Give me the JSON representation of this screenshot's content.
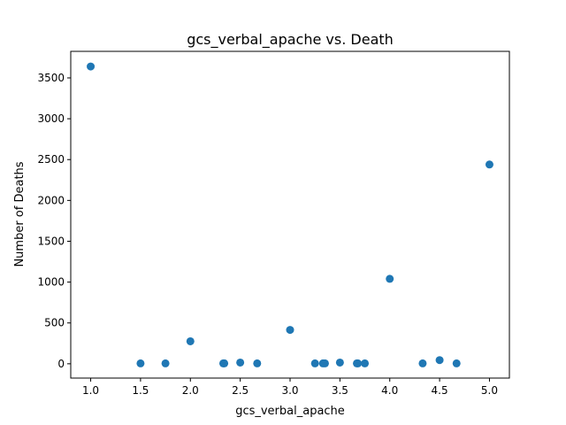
{
  "chart_data": {
    "type": "scatter",
    "title": "gcs_verbal_apache vs. Death",
    "xlabel": "gcs_verbal_apache",
    "ylabel": "Number of Deaths",
    "xlim": [
      0.8,
      5.2
    ],
    "ylim": [
      -175,
      3825
    ],
    "xticks": [
      "1.0",
      "1.5",
      "2.0",
      "2.5",
      "3.0",
      "3.5",
      "4.0",
      "4.5",
      "5.0"
    ],
    "yticks": [
      "0",
      "500",
      "1000",
      "1500",
      "2000",
      "2500",
      "3000",
      "3500"
    ],
    "grid": false,
    "marker_color": "#1f77b4",
    "x": [
      1.0,
      1.5,
      1.75,
      2.0,
      2.33,
      2.34,
      2.5,
      2.67,
      3.0,
      3.25,
      3.33,
      3.35,
      3.5,
      3.67,
      3.68,
      3.75,
      4.0,
      4.33,
      4.5,
      4.67,
      5.0
    ],
    "y": [
      3640,
      5,
      5,
      275,
      5,
      5,
      15,
      5,
      415,
      5,
      5,
      5,
      15,
      5,
      5,
      5,
      1040,
      5,
      45,
      5,
      2440
    ]
  }
}
